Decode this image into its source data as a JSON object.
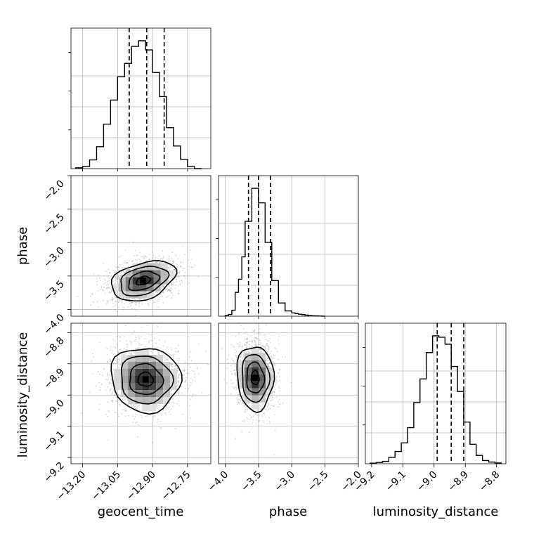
{
  "chart_data": {
    "type": "corner",
    "parameters": [
      {
        "name": "geocent_time",
        "range": [
          -13.25,
          -12.65
        ],
        "ticks": [
          "-13.20",
          "-13.05",
          "-12.90",
          "-12.75"
        ],
        "tick_values": [
          -13.2,
          -13.05,
          -12.9,
          -12.75
        ],
        "quantiles": [
          -13.0,
          -12.925,
          -12.85
        ]
      },
      {
        "name": "phase",
        "range": [
          -4.1,
          -2.0
        ],
        "ticks": [
          "-4.0",
          "-3.5",
          "-3.0",
          "-2.5",
          "-2.0"
        ],
        "tick_values": [
          -4.0,
          -3.5,
          -3.0,
          -2.5,
          -2.0
        ],
        "quantiles": [
          -3.65,
          -3.5,
          -3.32
        ]
      },
      {
        "name": "luminosity_distance",
        "range": [
          -9.22,
          -8.77
        ],
        "ticks": [
          "-9.2",
          "-9.1",
          "-9.0",
          "-8.9",
          "-8.8"
        ],
        "tick_values": [
          -9.2,
          -9.1,
          -9.0,
          -8.9,
          -8.8
        ],
        "quantiles": [
          -8.99,
          -8.945,
          -8.905
        ]
      }
    ],
    "histograms": [
      {
        "param": "geocent_time",
        "bins": [
          -13.23,
          -13.2,
          -13.17,
          -13.14,
          -13.11,
          -13.08,
          -13.05,
          -13.02,
          -12.99,
          -12.96,
          -12.93,
          -12.9,
          -12.87,
          -12.84,
          -12.81,
          -12.78,
          -12.75,
          -12.72,
          -12.69
        ],
        "counts": [
          0.6,
          1.5,
          6.2,
          15.5,
          31.5,
          48.5,
          65,
          74.5,
          86.5,
          90.5,
          84,
          68,
          51,
          29,
          16,
          6.6,
          1.5,
          0
        ]
      },
      {
        "param": "phase",
        "bins": [
          -4.0,
          -3.95,
          -3.9,
          -3.85,
          -3.8,
          -3.75,
          -3.7,
          -3.65,
          -3.6,
          -3.55,
          -3.5,
          -3.45,
          -3.4,
          -3.35,
          -3.3,
          -3.25,
          -3.2,
          -3.15,
          -3.1,
          -3.05,
          -3.0,
          -2.95,
          -2.9,
          -2.85,
          -2.8,
          -2.75,
          -2.7,
          -2.65,
          -2.6,
          -2.55,
          -2.5
        ],
        "counts": [
          0.5,
          1.3,
          4.5,
          18,
          28,
          45,
          72,
          72,
          97,
          97,
          86,
          86,
          56,
          56,
          27,
          27,
          10,
          10,
          4,
          4,
          2.5,
          2,
          1.5,
          1.2,
          0.8,
          0.5,
          0.3,
          0.2,
          0.1,
          0
        ]
      },
      {
        "param": "luminosity_distance",
        "bins": [
          -9.205,
          -9.185,
          -9.165,
          -9.145,
          -9.125,
          -9.105,
          -9.085,
          -9.065,
          -9.045,
          -9.025,
          -9.005,
          -8.985,
          -8.965,
          -8.945,
          -8.925,
          -8.905,
          -8.885,
          -8.865,
          -8.845,
          -8.825,
          -8.805,
          -8.785
        ],
        "counts": [
          0.4,
          0.9,
          1.7,
          4.6,
          8.8,
          15,
          26,
          44,
          61,
          80,
          92,
          91,
          86,
          70,
          52,
          30,
          14,
          6,
          2.3,
          1.2,
          0.5
        ]
      }
    ],
    "density_peaks": {
      "geocent_time_vs_phase": {
        "x": -12.94,
        "y": -3.57
      },
      "geocent_time_vs_luminosity_distance": {
        "x": -12.93,
        "y": -8.95
      },
      "phase_vs_luminosity_distance": {
        "x": -3.55,
        "y": -8.945
      }
    },
    "grid": true,
    "quantile_style": "dashed",
    "histogram_y_tick_labels": "none"
  }
}
